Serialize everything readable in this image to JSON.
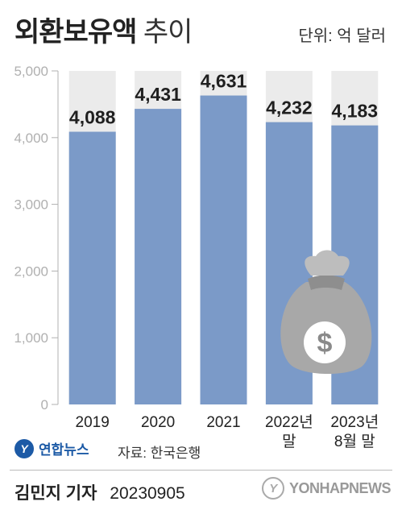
{
  "header": {
    "title_main": "외환보유액",
    "title_sub": "추이",
    "unit": "단위: 억 달러"
  },
  "chart_data": {
    "type": "bar",
    "categories": [
      [
        "2019"
      ],
      [
        "2020"
      ],
      [
        "2021"
      ],
      [
        "2022년",
        "말"
      ],
      [
        "2023년",
        "8월 말"
      ]
    ],
    "values": [
      4088,
      4431,
      4631,
      4232,
      4183
    ],
    "value_labels": [
      "4,088",
      "4,431",
      "4,631",
      "4,232",
      "4,183"
    ],
    "ylim": [
      0,
      5000
    ],
    "y_ticks": [
      0,
      1000,
      2000,
      3000,
      4000,
      5000
    ],
    "y_tick_labels": [
      "0",
      "1,000",
      "2,000",
      "3,000",
      "4,000",
      "5,000"
    ],
    "grid": false,
    "colors": {
      "bar": "#7b9ac8",
      "band": "#ebebeb",
      "label": "#1f1f1f",
      "tick": "#b0b0b0"
    }
  },
  "decoration": {
    "icon": "money-bag-icon",
    "symbol": "$"
  },
  "footer": {
    "brand": "연합뉴스",
    "brand_logo": "Y",
    "source": "자료: 한국은행",
    "reporter": "김민지 기자",
    "date": "20230905",
    "watermark": "YONHAPNEWS",
    "watermark_logo": "Y"
  }
}
